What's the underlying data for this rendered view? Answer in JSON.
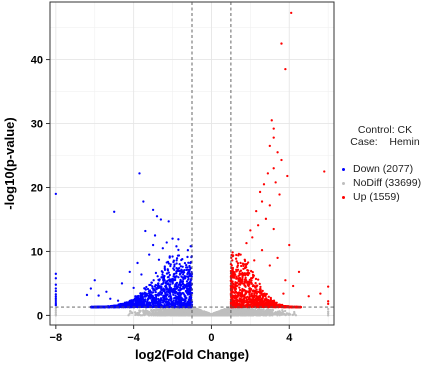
{
  "chart_data": {
    "type": "scatter",
    "title": "",
    "xlabel": "log2(Fold Change)",
    "ylabel": "-log10(p-value)",
    "xlim": [
      -8.3,
      6.3
    ],
    "ylim": [
      -1.5,
      49
    ],
    "xticks": [
      -8,
      -4,
      0,
      4
    ],
    "yticks": [
      0,
      10,
      20,
      30,
      40
    ],
    "grid": true,
    "thresholds": {
      "log2fc": [
        -1,
        1
      ],
      "neg_log10_p": 1.3
    },
    "legend": {
      "position": "right",
      "title_lines": [
        "Control: CK",
        "Case:    Hemin"
      ],
      "entries": [
        {
          "key": "down",
          "label": "Down (2077)",
          "color": "#0000ff"
        },
        {
          "key": "nodiff",
          "label": "NoDiff (33699)",
          "color": "#bebebe"
        },
        {
          "key": "up",
          "label": "Up (1559)",
          "color": "#ff0000"
        }
      ]
    },
    "series": [
      {
        "key": "down",
        "count": 2077,
        "points": [
          [
            -8,
            19
          ],
          [
            -8,
            6.5
          ],
          [
            -8,
            5.8
          ],
          [
            -8,
            4.8
          ],
          [
            -8,
            4.2
          ],
          [
            -8,
            3.8
          ],
          [
            -8,
            3.3
          ],
          [
            -8,
            3
          ],
          [
            -8,
            2.7
          ],
          [
            -8,
            2.4
          ],
          [
            -8,
            2.1
          ],
          [
            -8,
            1.8
          ],
          [
            -8,
            1.6
          ],
          [
            -5,
            16.2
          ],
          [
            -3.7,
            22.2
          ],
          [
            -3.5,
            17.8
          ],
          [
            -3,
            16.5
          ],
          [
            -2.8,
            15.5
          ],
          [
            -2.6,
            15
          ],
          [
            -3.4,
            13.2
          ],
          [
            -2.9,
            12.5
          ],
          [
            -2.2,
            14.7
          ],
          [
            -2,
            12
          ],
          [
            -1.8,
            10.8
          ],
          [
            -1.5,
            8.8
          ],
          [
            -6,
            5.5
          ],
          [
            -6.2,
            4.2
          ],
          [
            -5.4,
            3.7
          ],
          [
            -5.8,
            3.1
          ],
          [
            -4.6,
            5
          ],
          [
            -4.2,
            6.8
          ],
          [
            -3.8,
            8.2
          ],
          [
            -3.2,
            9.5
          ],
          [
            -2.5,
            10.5
          ],
          [
            -2.3,
            11.4
          ],
          [
            -1.3,
            7.5
          ],
          [
            -1.2,
            6
          ],
          [
            -4.8,
            2.3
          ],
          [
            -2,
            9.2
          ],
          [
            -1.7,
            11.9
          ],
          [
            -3,
            11
          ],
          [
            -2.7,
            8.7
          ],
          [
            -4,
            4.3
          ],
          [
            -3.6,
            6.4
          ],
          [
            -2.4,
            7.4
          ],
          [
            -1.6,
            5.3
          ],
          [
            -1.1,
            4.4
          ],
          [
            -1.9,
            3.8
          ],
          [
            -5.2,
            2.6
          ],
          [
            -6.4,
            3.2
          ]
        ],
        "cloud": {
          "x_range": [
            -6.5,
            -1
          ],
          "y_range": [
            1.3,
            12
          ],
          "approx_points": 2077
        }
      },
      {
        "key": "up",
        "count": 1559,
        "points": [
          [
            4.1,
            47.3
          ],
          [
            3.6,
            42.5
          ],
          [
            3.8,
            38.5
          ],
          [
            3.1,
            30.5
          ],
          [
            3.2,
            29.2
          ],
          [
            3.2,
            27.8
          ],
          [
            3,
            26.5
          ],
          [
            3.4,
            25.5
          ],
          [
            3.6,
            24.3
          ],
          [
            5.8,
            22.5
          ],
          [
            3.2,
            23
          ],
          [
            2.9,
            22.2
          ],
          [
            3.9,
            21.8
          ],
          [
            2.7,
            20.5
          ],
          [
            3.3,
            20.8
          ],
          [
            2.5,
            19.3
          ],
          [
            3.5,
            18.9
          ],
          [
            2.6,
            17.8
          ],
          [
            3,
            17.2
          ],
          [
            2.3,
            16.3
          ],
          [
            2.8,
            15.1
          ],
          [
            2.4,
            14.1
          ],
          [
            2,
            13.3
          ],
          [
            3.2,
            13.5
          ],
          [
            2.1,
            12.2
          ],
          [
            4,
            11
          ],
          [
            1.8,
            11.3
          ],
          [
            2.6,
            10.2
          ],
          [
            3.4,
            9
          ],
          [
            4.5,
            6.8
          ],
          [
            3.8,
            5.5
          ],
          [
            5.6,
            3.4
          ],
          [
            6,
            2.2
          ],
          [
            6,
            1.8
          ],
          [
            6,
            4.5
          ],
          [
            5,
            3
          ],
          [
            3,
            7.8
          ],
          [
            1.5,
            9.5
          ],
          [
            2.2,
            8.6
          ],
          [
            4.2,
            4.6
          ],
          [
            1.9,
            6.5
          ],
          [
            2.4,
            5.6
          ],
          [
            3.7,
            3.4
          ],
          [
            1.6,
            5
          ],
          [
            1.3,
            7.1
          ],
          [
            1.2,
            4.2
          ]
        ],
        "cloud": {
          "x_range": [
            1,
            4.6
          ],
          "y_range": [
            1.3,
            10
          ],
          "approx_points": 1559
        }
      },
      {
        "key": "nodiff",
        "count": 33699,
        "points": [
          [
            -8,
            1.1
          ],
          [
            -8,
            0.8
          ],
          [
            -8,
            0.5
          ],
          [
            -8,
            0.2
          ],
          [
            -8,
            0
          ],
          [
            6,
            1
          ],
          [
            6,
            0.6
          ],
          [
            6,
            0.3
          ],
          [
            6,
            0
          ]
        ],
        "cloud": {
          "x_range": [
            -6,
            6
          ],
          "y_range": [
            0,
            2.6
          ],
          "approx_points": 33699
        }
      }
    ]
  }
}
